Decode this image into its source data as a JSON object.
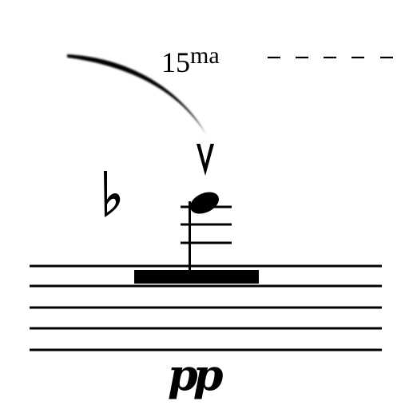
{
  "ottava": {
    "number": "15",
    "suffix": "ma"
  },
  "dynamic": "pp",
  "glyphs": {
    "accidental": "flat-icon",
    "articulation": "marcato-icon",
    "slur": "slur-curve",
    "note": "quarter-note",
    "rest": "whole-rest-bar"
  },
  "staff": {
    "line_count": 5,
    "ledger_line_count": 3
  },
  "colors": {
    "ink": "#000000",
    "background": "#ffffff"
  }
}
